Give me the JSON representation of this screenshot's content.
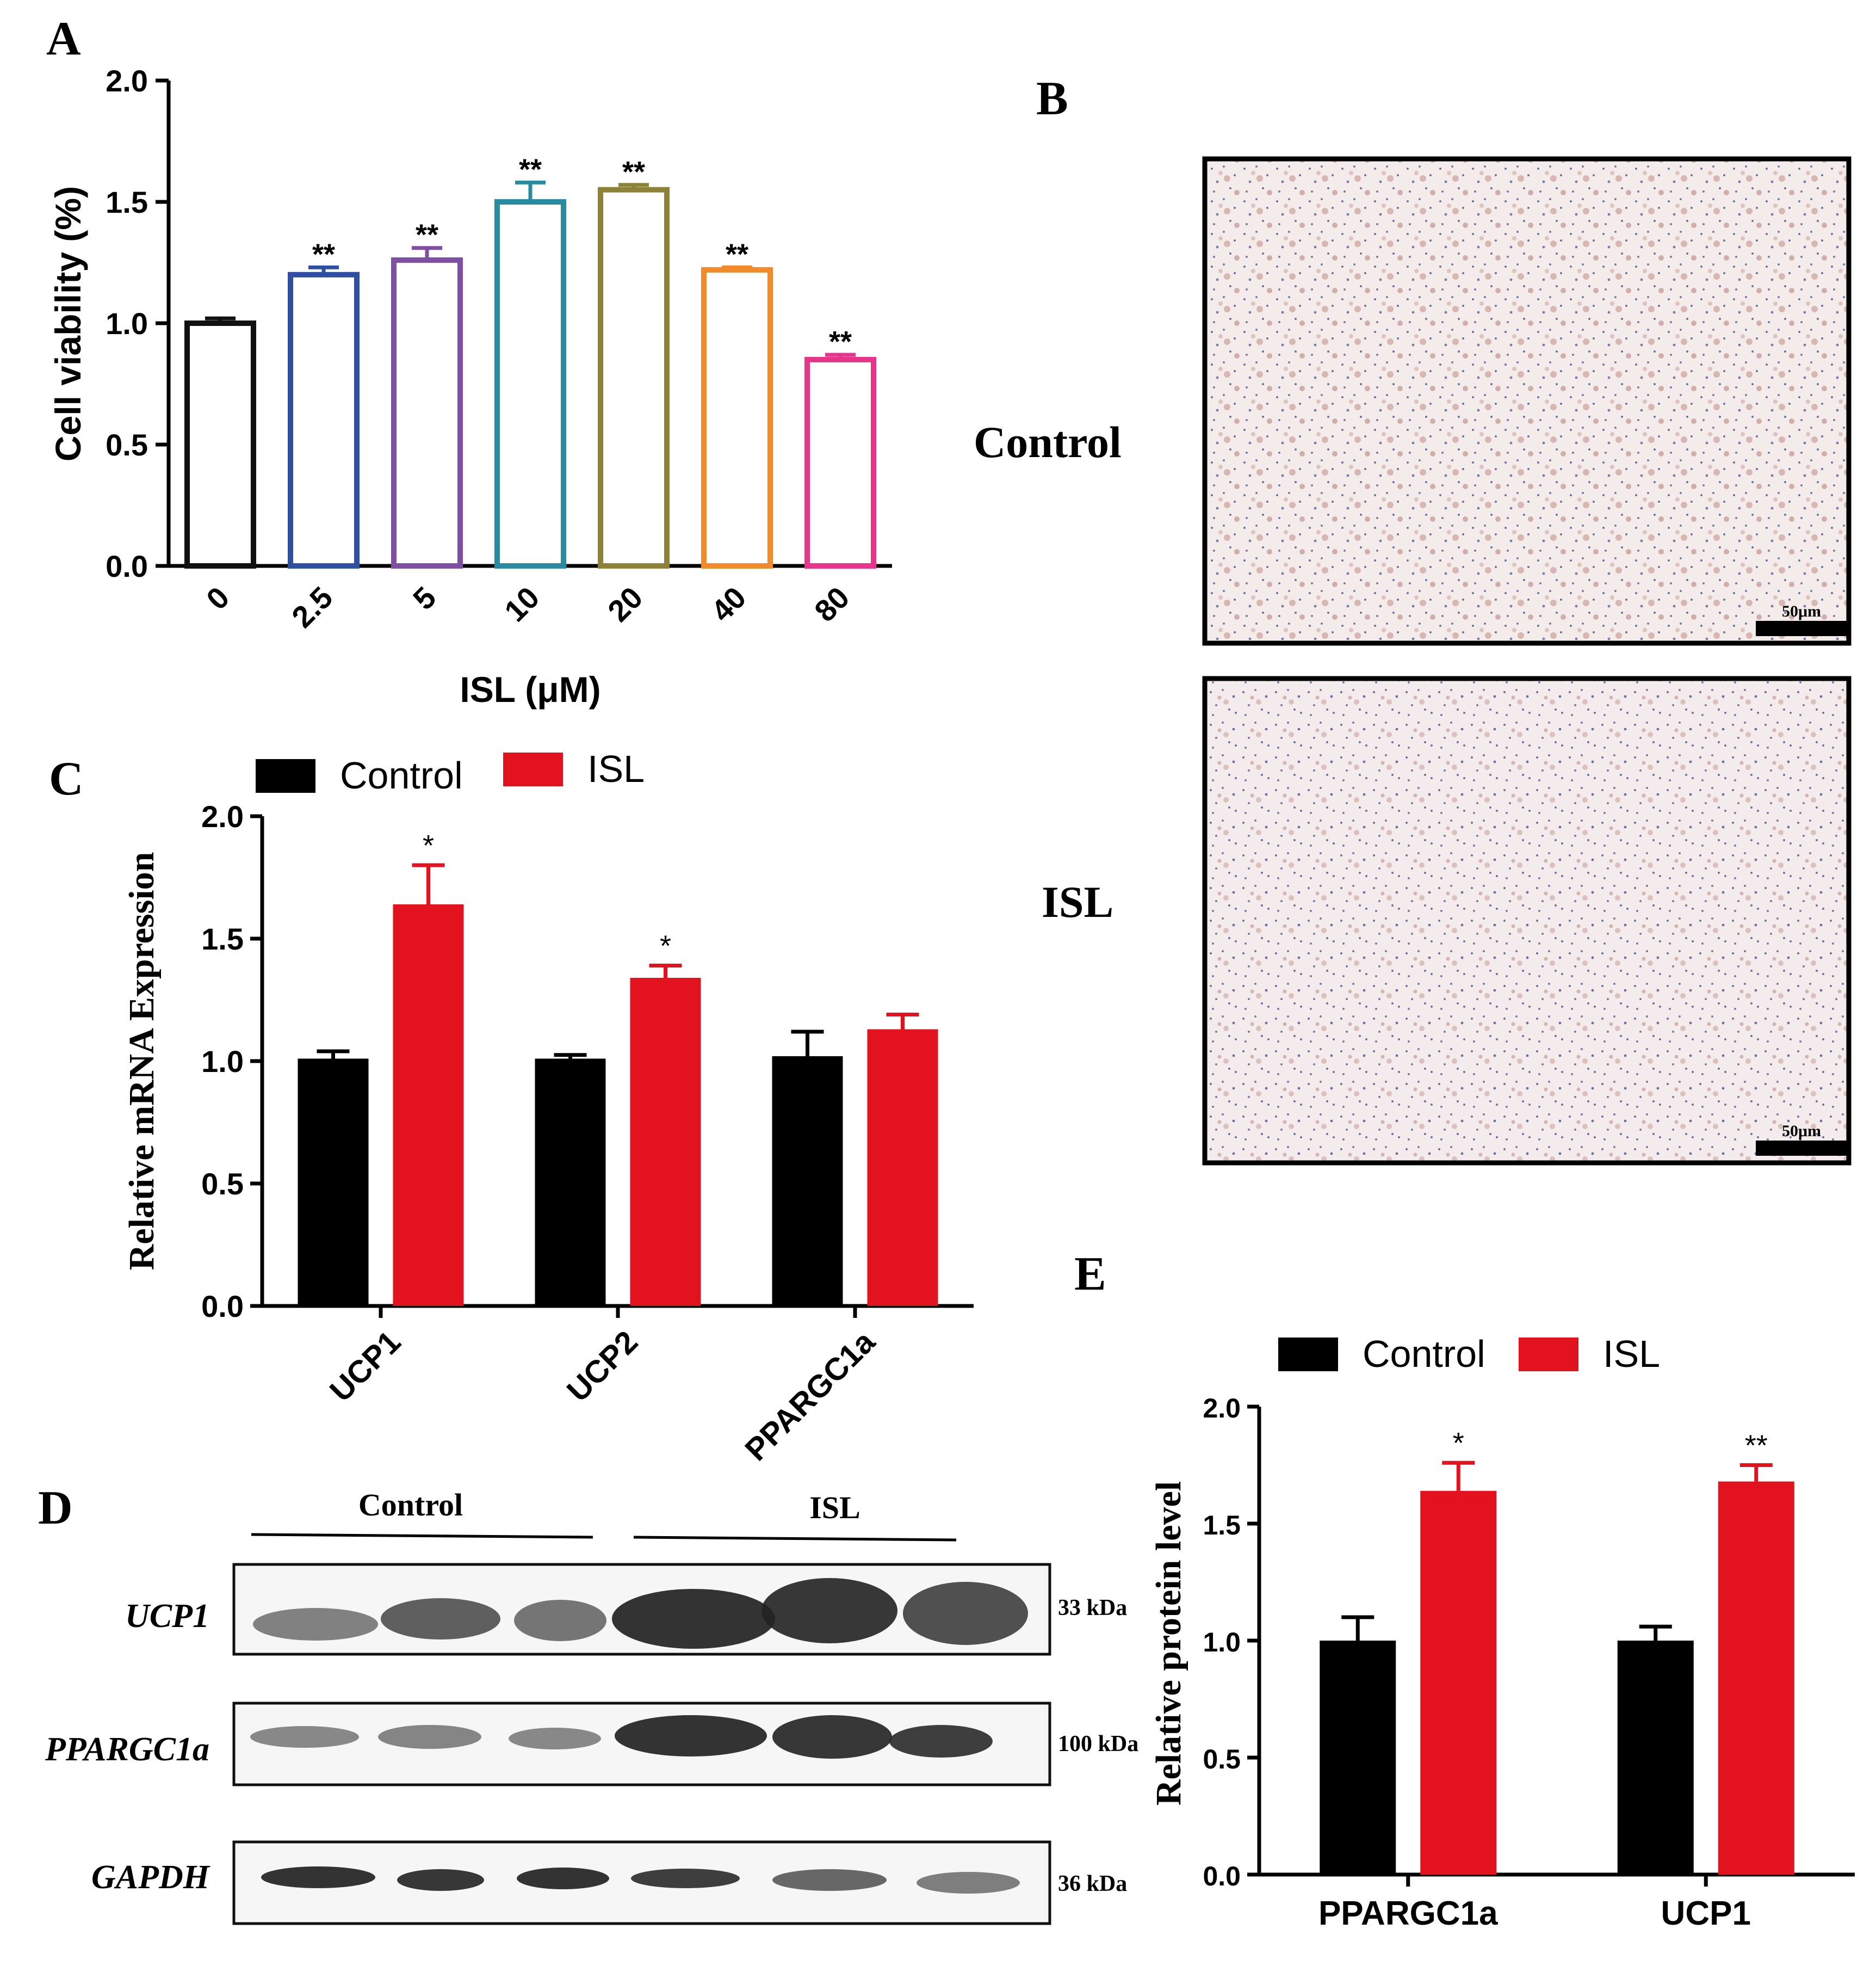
{
  "panels": {
    "A": {
      "letter": "A"
    },
    "B": {
      "letter": "B",
      "rows": [
        "Control",
        "ISL"
      ],
      "scalebar": "50μm"
    },
    "C": {
      "letter": "C"
    },
    "D": {
      "letter": "D",
      "groups": [
        "Control",
        "ISL"
      ],
      "rows": [
        {
          "label": "UCP1",
          "size": "33 kDa"
        },
        {
          "label": "PPARGC1a",
          "size": "100 kDa"
        },
        {
          "label": "GAPDH",
          "size": "36 kDa"
        }
      ]
    },
    "E": {
      "letter": "E"
    }
  },
  "chart_data": [
    {
      "id": "A",
      "type": "bar",
      "categories": [
        "0",
        "2.5",
        "5",
        "10",
        "20",
        "40",
        "80"
      ],
      "values": [
        1.0,
        1.2,
        1.26,
        1.5,
        1.55,
        1.22,
        0.85
      ],
      "errors": [
        0.02,
        0.03,
        0.05,
        0.08,
        0.02,
        0.01,
        0.02
      ],
      "significance": [
        "",
        "**",
        "**",
        "**",
        "**",
        "**",
        "**"
      ],
      "colors": [
        "#111111",
        "#2f4fa3",
        "#7e4fa2",
        "#2a8aa0",
        "#8c8338",
        "#f08a2a",
        "#e5368b"
      ],
      "xlabel": "ISL (μM)",
      "ylabel": "Cell viability (%)",
      "ylim": [
        0,
        2.0
      ],
      "yticks": [
        "0.0",
        "0.5",
        "1.0",
        "1.5",
        "2.0"
      ]
    },
    {
      "id": "C",
      "type": "bar",
      "categories": [
        "UCP1",
        "UCP2",
        "PPARGC1a"
      ],
      "series": [
        {
          "name": "Control",
          "color": "#000000",
          "values": [
            1.01,
            1.01,
            1.02
          ],
          "errors": [
            0.03,
            0.015,
            0.1
          ]
        },
        {
          "name": "ISL",
          "color": "#e3121f",
          "values": [
            1.64,
            1.34,
            1.13
          ],
          "errors": [
            0.16,
            0.05,
            0.06
          ]
        }
      ],
      "significance": [
        "*",
        "*",
        ""
      ],
      "ylabel": "Relative mRNA Expression",
      "ylim": [
        0,
        2.0
      ],
      "yticks": [
        "0.0",
        "0.5",
        "1.0",
        "1.5",
        "2.0"
      ],
      "legend": "top-left"
    },
    {
      "id": "E",
      "type": "bar",
      "categories": [
        "PPARGC1a",
        "UCP1"
      ],
      "series": [
        {
          "name": "Control",
          "color": "#000000",
          "values": [
            1.0,
            1.0
          ],
          "errors": [
            0.1,
            0.06
          ]
        },
        {
          "name": "ISL",
          "color": "#e3121f",
          "values": [
            1.64,
            1.68
          ],
          "errors": [
            0.12,
            0.07
          ]
        }
      ],
      "significance": [
        "*",
        "**"
      ],
      "ylabel": "Relative protein level",
      "ylim": [
        0,
        2.0
      ],
      "yticks": [
        "0.0",
        "0.5",
        "1.0",
        "1.5",
        "2.0"
      ],
      "legend": "top"
    }
  ]
}
